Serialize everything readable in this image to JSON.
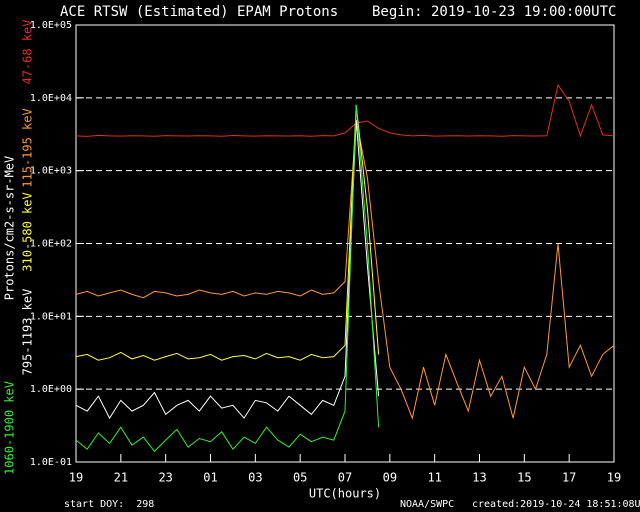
{
  "chart_data": {
    "type": "line",
    "title": "ACE RTSW (Estimated) EPAM Protons",
    "subtitle": "Begin: 2019-10-23 19:00:00UTC",
    "x_label": "UTC(hours)",
    "y_label": "Protons/cm2-s-sr-MeV",
    "footer_left": "start DOY:  298",
    "footer_center": "NOAA/SWPC",
    "footer_right": "created:2019-10-24 18:51:08UTC",
    "yscale": "log",
    "grid": true,
    "xlim": [
      0,
      24
    ],
    "ylim": [
      0.1,
      100000
    ],
    "xticks": [
      {
        "value": 0,
        "label": "19"
      },
      {
        "value": 2,
        "label": "21"
      },
      {
        "value": 4,
        "label": "23"
      },
      {
        "value": 6,
        "label": "01"
      },
      {
        "value": 8,
        "label": "03"
      },
      {
        "value": 10,
        "label": "05"
      },
      {
        "value": 12,
        "label": "07"
      },
      {
        "value": 14,
        "label": "09"
      },
      {
        "value": 16,
        "label": "11"
      },
      {
        "value": 18,
        "label": "13"
      },
      {
        "value": 20,
        "label": "15"
      },
      {
        "value": 22,
        "label": "17"
      },
      {
        "value": 24,
        "label": "19"
      }
    ],
    "yticks": [
      {
        "value": 0.1,
        "label": "1.0E-01"
      },
      {
        "value": 1,
        "label": "1.0E+00"
      },
      {
        "value": 10,
        "label": "1.0E+01"
      },
      {
        "value": 100,
        "label": "1.0E+02"
      },
      {
        "value": 1000,
        "label": "1.0E+03"
      },
      {
        "value": 10000,
        "label": "1.0E+04"
      },
      {
        "value": 100000,
        "label": "1.0E+05"
      }
    ],
    "x": [
      0,
      0.5,
      1,
      1.5,
      2,
      2.5,
      3,
      3.5,
      4,
      4.5,
      5,
      5.5,
      6,
      6.5,
      7,
      7.5,
      8,
      8.5,
      9,
      9.5,
      10,
      10.5,
      11,
      11.5,
      12,
      12.5,
      13,
      13.5,
      14,
      14.5,
      15,
      15.5,
      16,
      16.5,
      17,
      17.5,
      18,
      18.5,
      19,
      19.5,
      20,
      20.5,
      21,
      21.5,
      22,
      22.5,
      23,
      23.5,
      24
    ],
    "series": [
      {
        "name": "47-68 keV",
        "color": "#e0301e",
        "values": [
          3000,
          2950,
          3050,
          3000,
          2980,
          3020,
          3000,
          2970,
          3030,
          3000,
          2990,
          3010,
          3000,
          2960,
          3040,
          3000,
          2980,
          3020,
          3000,
          2990,
          3010,
          2970,
          3030,
          3000,
          3300,
          4500,
          4800,
          3800,
          3300,
          3100,
          3000,
          3050,
          2980,
          3000,
          3020,
          2990,
          3010,
          3000,
          2970,
          3030,
          3000,
          2990,
          3010,
          15000,
          9000,
          3000,
          8000,
          3100,
          3000
        ]
      },
      {
        "name": "115-195 keV",
        "color": "#ff9a2e",
        "values": [
          20,
          22,
          19,
          21,
          23,
          20,
          18,
          22,
          21,
          19,
          20,
          23,
          21,
          20,
          22,
          19,
          21,
          20,
          22,
          21,
          19,
          23,
          20,
          21,
          30,
          5000,
          800,
          30,
          2,
          1,
          0.4,
          2,
          0.6,
          3,
          1.2,
          0.5,
          2.5,
          0.8,
          1.5,
          0.4,
          2,
          1,
          3,
          100,
          2,
          4,
          1.5,
          3,
          4
        ]
      },
      {
        "name": "310-580 keV",
        "color": "#ffff33",
        "values": [
          2.8,
          3.0,
          2.5,
          2.7,
          3.2,
          2.6,
          2.9,
          2.5,
          2.8,
          3.1,
          2.6,
          2.7,
          3.0,
          2.5,
          2.8,
          2.9,
          2.6,
          3.1,
          2.7,
          2.8,
          2.5,
          3.0,
          2.7,
          2.8,
          4,
          8000,
          300,
          3,
          null,
          null,
          null,
          null,
          null,
          null,
          null,
          null,
          null,
          null,
          null,
          null,
          null,
          null,
          null,
          null,
          null,
          null,
          null,
          null,
          null
        ]
      },
      {
        "name": "795-1193 keV",
        "color": "#ffffff",
        "values": [
          0.6,
          0.5,
          0.8,
          0.4,
          0.7,
          0.5,
          0.6,
          0.9,
          0.45,
          0.6,
          0.7,
          0.5,
          0.8,
          0.55,
          0.6,
          0.4,
          0.7,
          0.65,
          0.5,
          0.8,
          0.6,
          0.45,
          0.7,
          0.6,
          1.5,
          5000,
          50,
          0.8,
          null,
          null,
          null,
          null,
          null,
          null,
          null,
          null,
          null,
          null,
          null,
          null,
          null,
          null,
          null,
          null,
          null,
          null,
          null,
          null,
          null
        ]
      },
      {
        "name": "1060-1900 keV",
        "color": "#33ee33",
        "values": [
          0.2,
          0.15,
          0.25,
          0.18,
          0.3,
          0.17,
          0.22,
          0.14,
          0.2,
          0.28,
          0.16,
          0.21,
          0.19,
          0.26,
          0.15,
          0.22,
          0.18,
          0.3,
          0.2,
          0.16,
          0.24,
          0.19,
          0.22,
          0.2,
          0.5,
          8000,
          100,
          0.3,
          null,
          null,
          null,
          null,
          null,
          null,
          null,
          null,
          null,
          null,
          null,
          null,
          null,
          null,
          null,
          null,
          null,
          null,
          null,
          null,
          null
        ]
      }
    ]
  }
}
